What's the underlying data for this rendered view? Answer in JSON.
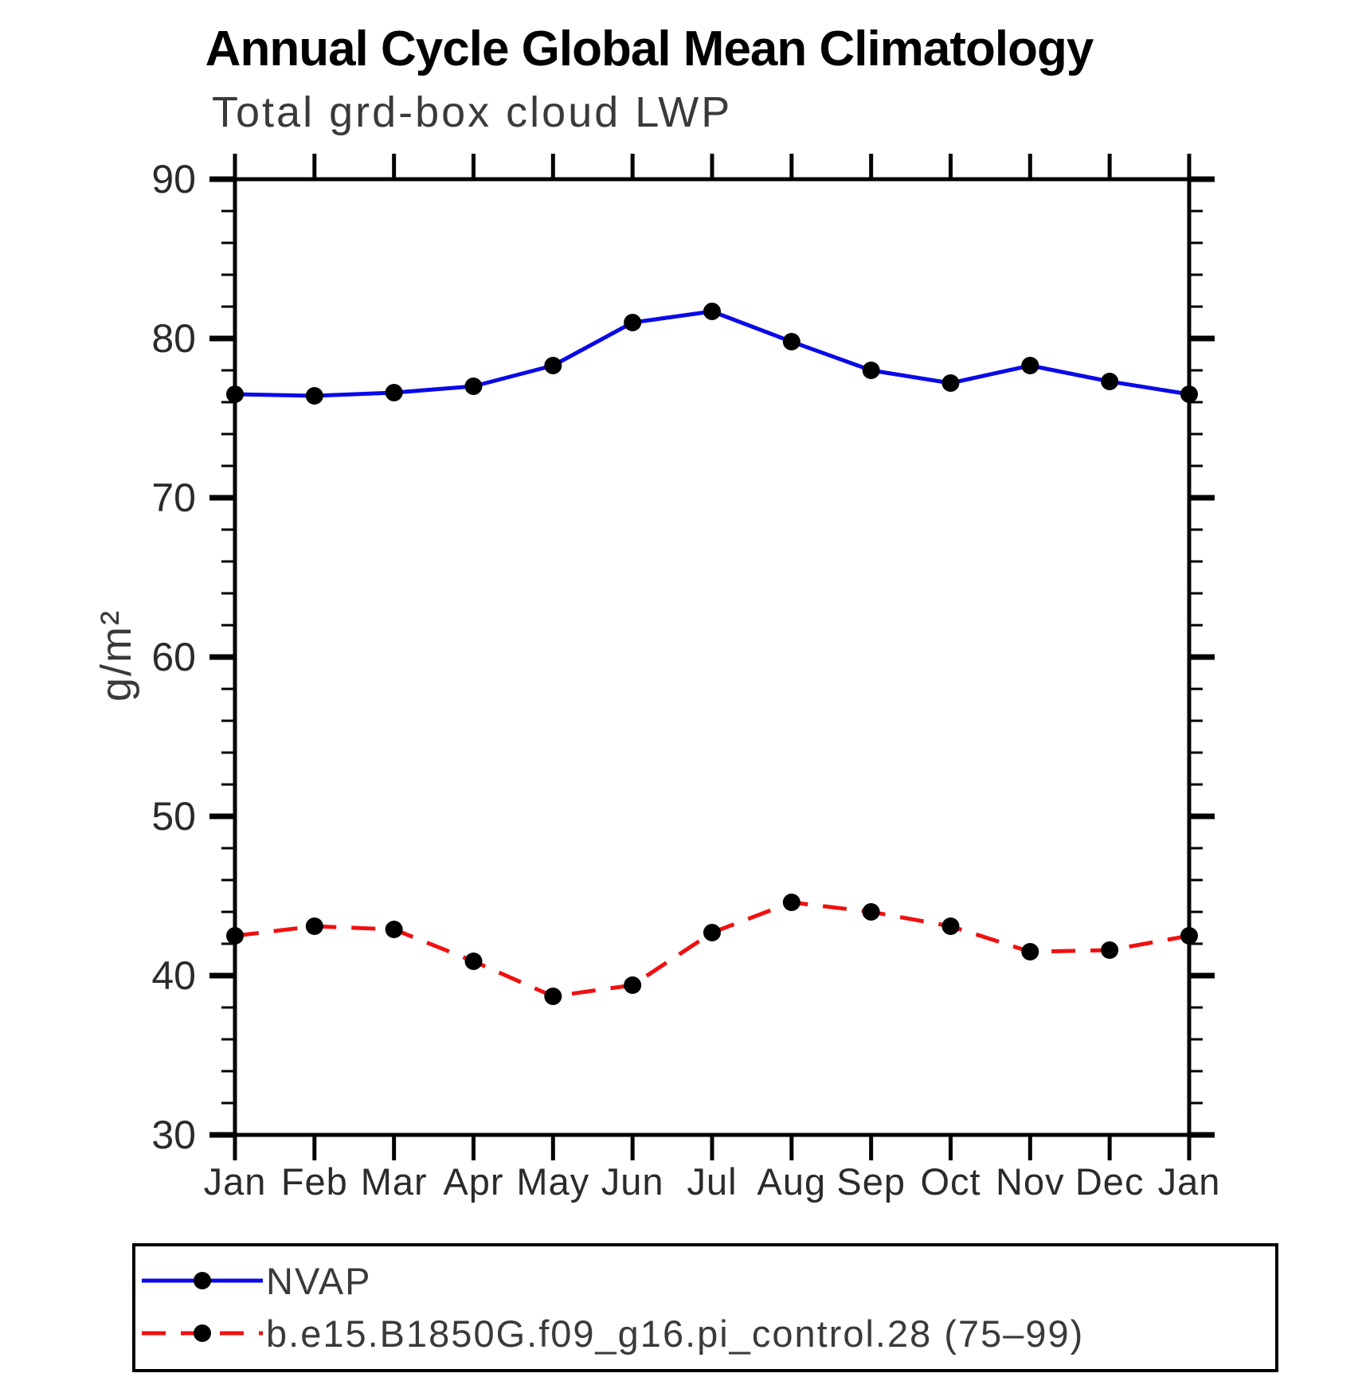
{
  "chart_data": {
    "type": "line",
    "title": "Annual Cycle Global Mean Climatology",
    "subtitle": "Total grd-box cloud LWP",
    "ylabel": "g/m²",
    "ylim": [
      30,
      90
    ],
    "yticks": [
      30,
      40,
      50,
      60,
      70,
      80,
      90
    ],
    "y_minor_step": 2,
    "grid": false,
    "legend_position": "bottom",
    "categories": [
      "Jan",
      "Feb",
      "Mar",
      "Apr",
      "May",
      "Jun",
      "Jul",
      "Aug",
      "Sep",
      "Oct",
      "Nov",
      "Dec",
      "Jan"
    ],
    "series": [
      {
        "name": "NVAP",
        "color": "#0a0ae6",
        "line_style": "solid",
        "marker": "black-dot",
        "marker_color": "#000000",
        "values": [
          76.5,
          76.4,
          76.6,
          77.0,
          78.3,
          81.0,
          81.7,
          79.8,
          78.0,
          77.2,
          78.3,
          77.3,
          76.5
        ]
      },
      {
        "name": "b.e15.B1850G.f09_g16.pi_control.28 (75–99)",
        "color": "#f01010",
        "line_style": "dashed",
        "marker": "black-dot",
        "marker_color": "#000000",
        "values": [
          42.5,
          43.1,
          42.9,
          40.9,
          38.7,
          39.4,
          42.7,
          44.6,
          44.0,
          43.1,
          41.5,
          41.6,
          42.5
        ]
      }
    ],
    "axis_color": "#000000"
  }
}
